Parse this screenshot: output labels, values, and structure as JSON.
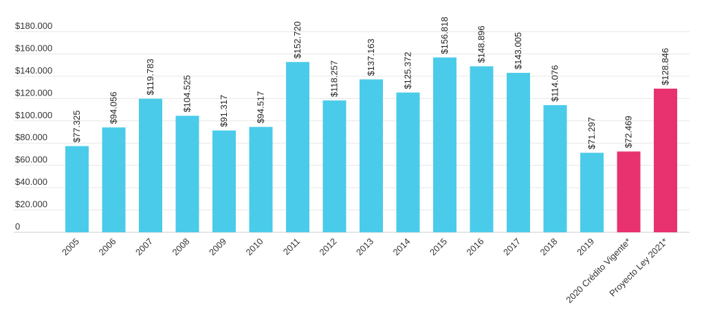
{
  "chart_data": {
    "type": "bar",
    "title": "",
    "xlabel": "",
    "ylabel": "",
    "ylim": [
      0,
      180000
    ],
    "grid": true,
    "legend": "none",
    "y_ticks": [
      0,
      20000,
      40000,
      60000,
      80000,
      100000,
      120000,
      140000,
      160000,
      180000
    ],
    "y_tick_labels": [
      "0",
      "$20.000",
      "$40.000",
      "$60.000",
      "$80.000",
      "$100.000",
      "$120.000",
      "$140.000",
      "$160.000",
      "$180.000"
    ],
    "categories": [
      "2005",
      "2006",
      "2007",
      "2008",
      "2009",
      "2010",
      "2011",
      "2012",
      "2013",
      "2014",
      "2015",
      "2016",
      "2017",
      "2018",
      "2019",
      "2020 Crédito Vigente*",
      "Proyecto Ley 2021*"
    ],
    "values": [
      77325,
      94056,
      119783,
      104525,
      91317,
      94517,
      152720,
      118257,
      137163,
      125372,
      156818,
      148896,
      143005,
      114076,
      71297,
      72469,
      128846
    ],
    "value_labels": [
      "$77.325",
      "$94.056",
      "$119.783",
      "$104.525",
      "$91.317",
      "$94.517",
      "$152.720",
      "$118.257",
      "$137.163",
      "$125.372",
      "$156.818",
      "$148.896",
      "$143.005",
      "$114.076",
      "$71.297",
      "$72.469",
      "$128.846"
    ],
    "bar_colors": [
      "#4bcbea",
      "#4bcbea",
      "#4bcbea",
      "#4bcbea",
      "#4bcbea",
      "#4bcbea",
      "#4bcbea",
      "#4bcbea",
      "#4bcbea",
      "#4bcbea",
      "#4bcbea",
      "#4bcbea",
      "#4bcbea",
      "#4bcbea",
      "#4bcbea",
      "#e8326f",
      "#e8326f"
    ]
  }
}
